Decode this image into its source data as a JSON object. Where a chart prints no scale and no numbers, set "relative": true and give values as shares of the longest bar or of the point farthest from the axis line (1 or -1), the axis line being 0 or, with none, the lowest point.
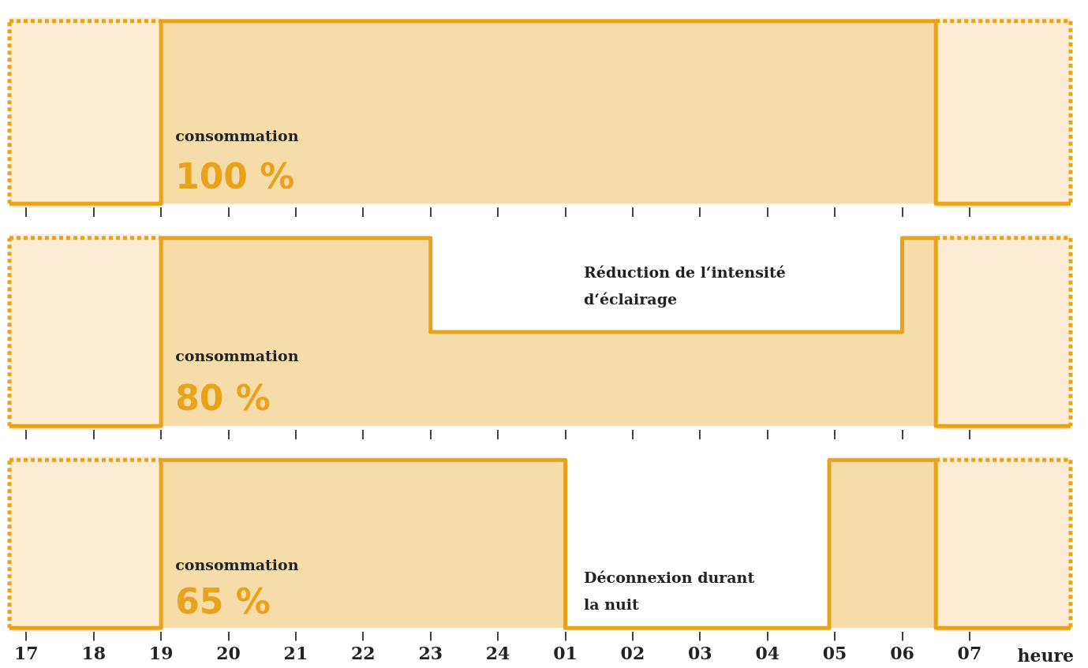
{
  "chart_data": [
    {
      "type": "area",
      "relative": true,
      "x": [
        "--01-01T16:45",
        "--01-01T19:00",
        "--01-01T19:00",
        "--01-02T06:30",
        "--01-02T06:30",
        "--01-02T08:30"
      ],
      "xlim": [
        "--01-01T16:45",
        "--01-02T08:30"
      ],
      "xticks": [
        {
          "value": "--01-01T17:00",
          "label": "17"
        },
        {
          "value": "--01-01T18:00",
          "label": "18"
        },
        {
          "value": "--01-01T19:00",
          "label": "19"
        },
        {
          "value": "--01-01T20:00",
          "label": "20"
        },
        {
          "value": "--01-01T21:00",
          "label": "21"
        },
        {
          "value": "--01-01T22:00",
          "label": "22"
        },
        {
          "value": "--01-01T23:00",
          "label": "23"
        },
        {
          "value": "--01-02T00:00",
          "label": "24"
        },
        {
          "value": "--01-02T01:00",
          "label": "01"
        },
        {
          "value": "--01-02T02:00",
          "label": "02"
        },
        {
          "value": "--01-02T03:00",
          "label": "03"
        },
        {
          "value": "--01-02T04:00",
          "label": "04"
        },
        {
          "value": "--01-02T05:00",
          "label": "05"
        },
        {
          "value": "--01-02T06:00",
          "label": "06"
        },
        {
          "value": "--01-02T07:00",
          "label": "07"
        }
      ],
      "tick_labels": false,
      "grid": false,
      "legend": false,
      "series": [
        {
          "color": "#e8a31b",
          "values": [
            0,
            0,
            1,
            1,
            0,
            0
          ]
        },
        {
          "type": "line",
          "line_style": "dotted",
          "color": "#e8a31b",
          "x": [
            "--01-01T16:45",
            "--01-01T19:00"
          ],
          "values": [
            1,
            1
          ]
        },
        {
          "type": "line",
          "line_style": "dotted",
          "color": "#e8a31b",
          "x": [
            "--01-02T06:30",
            "--01-02T08:30"
          ],
          "values": [
            1,
            1
          ]
        },
        {
          "type": "line",
          "line_style": "dotted",
          "color": "#e8a31b",
          "x": [
            "--01-01T16:45",
            "--01-01T16:45"
          ],
          "values": [
            0,
            1
          ]
        },
        {
          "type": "line",
          "line_style": "dotted",
          "color": "#e8a31b",
          "x": [
            "--01-02T08:30",
            "--01-02T08:30"
          ],
          "values": [
            1,
            0
          ]
        }
      ],
      "bands": [
        {
          "axis": "x",
          "from": "--01-01T16:45",
          "to": "--01-01T19:00",
          "color": "#fcecd3"
        },
        {
          "axis": "x",
          "from": "--01-02T06:30",
          "to": "--01-02T08:30",
          "color": "#fcecd3"
        }
      ],
      "annotations": [
        "consommation",
        "100 %"
      ]
    },
    {
      "type": "area",
      "relative": true,
      "x": [
        "--01-01T16:45",
        "--01-01T19:00",
        "--01-01T19:00",
        "--01-01T23:00",
        "--01-01T23:00",
        "--01-02T06:00",
        "--01-02T06:00",
        "--01-02T06:30",
        "--01-02T06:30",
        "--01-02T08:30"
      ],
      "xlim": [
        "--01-01T16:45",
        "--01-02T08:30"
      ],
      "xticks": [
        {
          "value": "--01-01T17:00",
          "label": "17"
        },
        {
          "value": "--01-01T18:00",
          "label": "18"
        },
        {
          "value": "--01-01T19:00",
          "label": "19"
        },
        {
          "value": "--01-01T20:00",
          "label": "20"
        },
        {
          "value": "--01-01T21:00",
          "label": "21"
        },
        {
          "value": "--01-01T22:00",
          "label": "22"
        },
        {
          "value": "--01-01T23:00",
          "label": "23"
        },
        {
          "value": "--01-02T00:00",
          "label": "24"
        },
        {
          "value": "--01-02T01:00",
          "label": "01"
        },
        {
          "value": "--01-02T02:00",
          "label": "02"
        },
        {
          "value": "--01-02T03:00",
          "label": "03"
        },
        {
          "value": "--01-02T04:00",
          "label": "04"
        },
        {
          "value": "--01-02T05:00",
          "label": "05"
        },
        {
          "value": "--01-02T06:00",
          "label": "06"
        },
        {
          "value": "--01-02T07:00",
          "label": "07"
        }
      ],
      "tick_labels": false,
      "grid": false,
      "legend": false,
      "series": [
        {
          "color": "#e8a31b",
          "values": [
            0,
            0,
            1,
            1,
            0.5,
            0.5,
            1,
            1,
            0,
            0
          ]
        },
        {
          "type": "line",
          "line_style": "dotted",
          "color": "#e8a31b",
          "x": [
            "--01-01T16:45",
            "--01-01T19:00"
          ],
          "values": [
            1,
            1
          ]
        },
        {
          "type": "line",
          "line_style": "dotted",
          "color": "#e8a31b",
          "x": [
            "--01-02T06:30",
            "--01-02T08:30"
          ],
          "values": [
            1,
            1
          ]
        },
        {
          "type": "line",
          "line_style": "dotted",
          "color": "#e8a31b",
          "x": [
            "--01-01T16:45",
            "--01-01T16:45"
          ],
          "values": [
            0,
            1
          ]
        },
        {
          "type": "line",
          "line_style": "dotted",
          "color": "#e8a31b",
          "x": [
            "--01-02T08:30",
            "--01-02T08:30"
          ],
          "values": [
            1,
            0
          ]
        }
      ],
      "bands": [
        {
          "axis": "x",
          "from": "--01-01T16:45",
          "to": "--01-01T19:00",
          "color": "#fcecd3"
        },
        {
          "axis": "x",
          "from": "--01-02T06:30",
          "to": "--01-02T08:30",
          "color": "#fcecd3"
        }
      ],
      "annotations": [
        "consommation",
        "80 %",
        "Réduction de l‘intensité\nd‘éclairage"
      ]
    },
    {
      "type": "area",
      "relative": true,
      "x": [
        "--01-01T16:45",
        "--01-01T19:00",
        "--01-01T19:00",
        "--01-02T01:00",
        "--01-02T01:00",
        "--01-02T04:55",
        "--01-02T04:55",
        "--01-02T06:30",
        "--01-02T06:30",
        "--01-02T08:30"
      ],
      "xlim": [
        "--01-01T16:45",
        "--01-02T08:30"
      ],
      "xticks": [
        {
          "value": "--01-01T17:00",
          "label": "17"
        },
        {
          "value": "--01-01T18:00",
          "label": "18"
        },
        {
          "value": "--01-01T19:00",
          "label": "19"
        },
        {
          "value": "--01-01T20:00",
          "label": "20"
        },
        {
          "value": "--01-01T21:00",
          "label": "21"
        },
        {
          "value": "--01-01T22:00",
          "label": "22"
        },
        {
          "value": "--01-01T23:00",
          "label": "23"
        },
        {
          "value": "--01-02T00:00",
          "label": "24"
        },
        {
          "value": "--01-02T01:00",
          "label": "01"
        },
        {
          "value": "--01-02T02:00",
          "label": "02"
        },
        {
          "value": "--01-02T03:00",
          "label": "03"
        },
        {
          "value": "--01-02T04:00",
          "label": "04"
        },
        {
          "value": "--01-02T05:00",
          "label": "05"
        },
        {
          "value": "--01-02T06:00",
          "label": "06"
        },
        {
          "value": "--01-02T07:00",
          "label": "07"
        }
      ],
      "grid": false,
      "legend": false,
      "xlabel": "heure",
      "series": [
        {
          "color": "#e8a31b",
          "values": [
            0,
            0,
            1,
            1,
            0,
            0,
            1,
            1,
            0,
            0
          ]
        },
        {
          "type": "line",
          "line_style": "dotted",
          "color": "#e8a31b",
          "x": [
            "--01-01T16:45",
            "--01-01T19:00"
          ],
          "values": [
            1,
            1
          ]
        },
        {
          "type": "line",
          "line_style": "dotted",
          "color": "#e8a31b",
          "x": [
            "--01-02T06:30",
            "--01-02T08:30"
          ],
          "values": [
            1,
            1
          ]
        },
        {
          "type": "line",
          "line_style": "dotted",
          "color": "#e8a31b",
          "x": [
            "--01-01T16:45",
            "--01-01T16:45"
          ],
          "values": [
            0,
            1
          ]
        },
        {
          "type": "line",
          "line_style": "dotted",
          "color": "#e8a31b",
          "x": [
            "--01-02T08:30",
            "--01-02T08:30"
          ],
          "values": [
            1,
            0
          ]
        }
      ],
      "bands": [
        {
          "axis": "x",
          "from": "--01-01T16:45",
          "to": "--01-01T19:00",
          "color": "#fcecd3"
        },
        {
          "axis": "x",
          "from": "--01-02T06:30",
          "to": "--01-02T08:30",
          "color": "#fcecd3"
        }
      ],
      "annotations": [
        "consommation",
        "65 %",
        "Déconnexion durant\nla nuit"
      ]
    }
  ]
}
